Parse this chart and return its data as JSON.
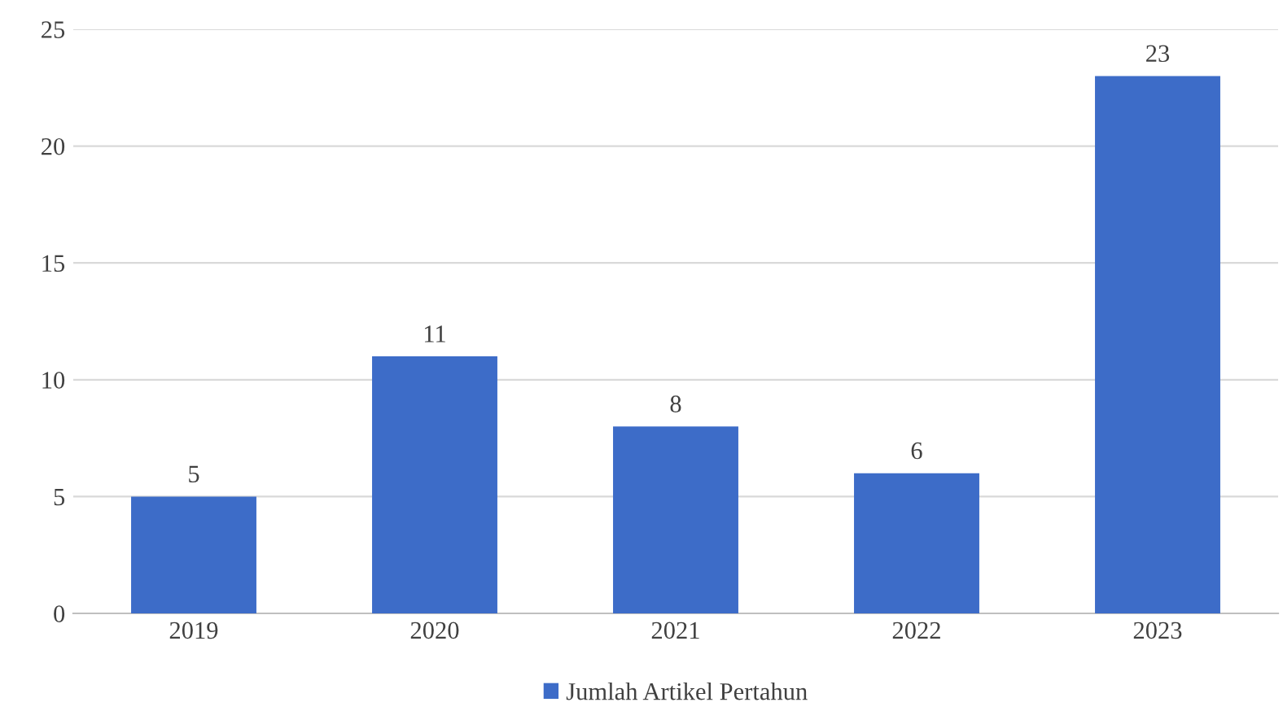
{
  "chart_data": {
    "type": "bar",
    "categories": [
      "2019",
      "2020",
      "2021",
      "2022",
      "2023"
    ],
    "series": [
      {
        "name": "Jumlah Artikel Pertahun",
        "color": "#3d6cc8",
        "values": [
          5,
          11,
          8,
          6,
          23
        ]
      }
    ],
    "ylim": [
      0,
      25
    ],
    "yticks": [
      0,
      5,
      10,
      15,
      20,
      25
    ],
    "grid": "y",
    "legend": "bottom",
    "data_labels": true
  }
}
